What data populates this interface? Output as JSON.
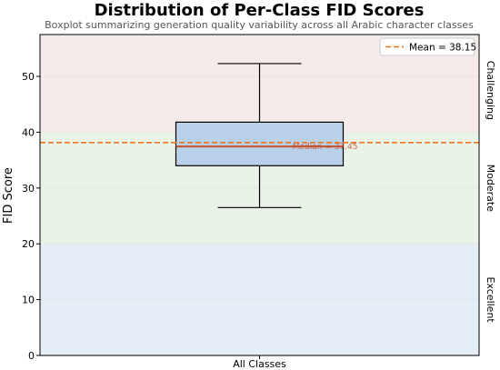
{
  "chart_data": {
    "type": "boxplot",
    "title": "Distribution of Per-Class FID Scores",
    "subtitle": "Boxplot summarizing generation quality variability across all Arabic character classes",
    "xlabel": "",
    "ylabel": "FID Score",
    "categories": [
      "All Classes"
    ],
    "ylim": [
      0,
      57.5
    ],
    "yticks": [
      0,
      10,
      20,
      30,
      40,
      50
    ],
    "box": {
      "whisker_low": 26.5,
      "q1": 34.0,
      "median": 37.45,
      "q3": 41.8,
      "whisker_high": 52.3
    },
    "median_label": "Median = 37.45",
    "mean": 38.15,
    "mean_label": "Mean = 38.15",
    "zones": [
      {
        "label": "Excellent",
        "from": 0,
        "to": 20,
        "color": "#c5d6ee"
      },
      {
        "label": "Moderate",
        "from": 20,
        "to": 40,
        "color": "#cfe4cb"
      },
      {
        "label": "Challenging",
        "from": 40,
        "to": 57.5,
        "color": "#ecd3d3"
      }
    ],
    "colors": {
      "box_fill": "#b8d0e8",
      "median_line": "#c8502c",
      "mean_line": "#e8761e"
    },
    "legend_position": "top-right",
    "grid": true
  }
}
